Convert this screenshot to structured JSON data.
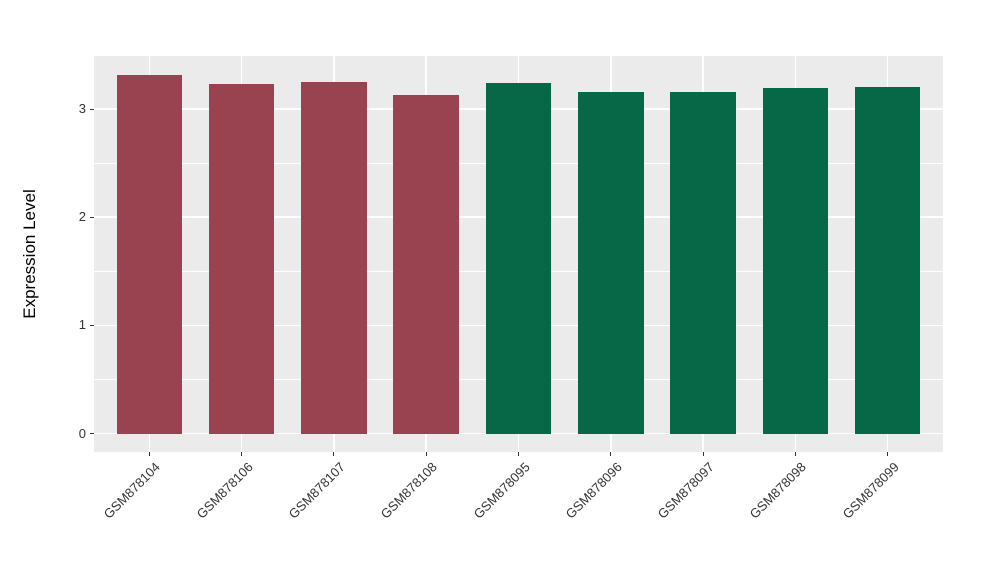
{
  "figure": {
    "background": "#FFFFFF",
    "panel_background": "#EBEBEB",
    "gridline_color": "#FFFFFF",
    "axis_text_color": "#333333",
    "axis_title_color": "#000000"
  },
  "chart_data": {
    "type": "bar",
    "title": "",
    "xlabel": "",
    "ylabel": "Expression Level",
    "categories": [
      "GSM878104",
      "GSM878106",
      "GSM878107",
      "GSM878108",
      "GSM878095",
      "GSM878096",
      "GSM878097",
      "GSM878098",
      "GSM878099"
    ],
    "values": [
      3.31,
      3.23,
      3.25,
      3.13,
      3.24,
      3.16,
      3.16,
      3.19,
      3.2
    ],
    "groups": [
      "group1",
      "group1",
      "group1",
      "group1",
      "group2",
      "group2",
      "group2",
      "group2",
      "group2"
    ],
    "group_colors": {
      "group1": "#9A4350",
      "group2": "#076848"
    },
    "ylim": [
      -0.17,
      3.49
    ],
    "yticks": [
      0,
      1,
      2,
      3
    ],
    "ytick_labels": [
      "0",
      "1",
      "2",
      "3"
    ],
    "yticks_minor": [
      0.5,
      1.5,
      2.5
    ],
    "grid": true,
    "legend_position": "none",
    "bar_width_fraction": 0.71,
    "x_expand": 0.6,
    "x_label_angle": 45
  }
}
